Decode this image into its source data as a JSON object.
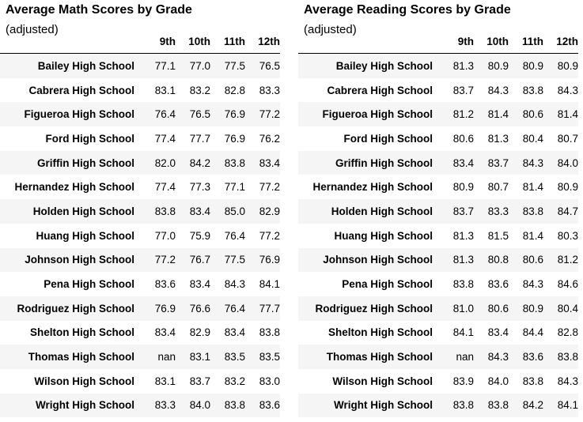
{
  "columns": [
    "9th",
    "10th",
    "11th",
    "12th"
  ],
  "math": {
    "title": "Average Math Scores by Grade",
    "subtitle": "(adjusted)",
    "rows": [
      {
        "school": "Bailey High School",
        "values": [
          "77.1",
          "77.0",
          "77.5",
          "76.5"
        ]
      },
      {
        "school": "Cabrera High School",
        "values": [
          "83.1",
          "83.2",
          "82.8",
          "83.3"
        ]
      },
      {
        "school": "Figueroa High School",
        "values": [
          "76.4",
          "76.5",
          "76.9",
          "77.2"
        ]
      },
      {
        "school": "Ford High School",
        "values": [
          "77.4",
          "77.7",
          "76.9",
          "76.2"
        ]
      },
      {
        "school": "Griffin High School",
        "values": [
          "82.0",
          "84.2",
          "83.8",
          "83.4"
        ]
      },
      {
        "school": "Hernandez High School",
        "values": [
          "77.4",
          "77.3",
          "77.1",
          "77.2"
        ]
      },
      {
        "school": "Holden High School",
        "values": [
          "83.8",
          "83.4",
          "85.0",
          "82.9"
        ]
      },
      {
        "school": "Huang High School",
        "values": [
          "77.0",
          "75.9",
          "76.4",
          "77.2"
        ]
      },
      {
        "school": "Johnson High School",
        "values": [
          "77.2",
          "76.7",
          "77.5",
          "76.9"
        ]
      },
      {
        "school": "Pena High School",
        "values": [
          "83.6",
          "83.4",
          "84.3",
          "84.1"
        ]
      },
      {
        "school": "Rodriguez High School",
        "values": [
          "76.9",
          "76.6",
          "76.4",
          "77.7"
        ]
      },
      {
        "school": "Shelton High School",
        "values": [
          "83.4",
          "82.9",
          "83.4",
          "83.8"
        ]
      },
      {
        "school": "Thomas High School",
        "values": [
          "nan",
          "83.1",
          "83.5",
          "83.5"
        ]
      },
      {
        "school": "Wilson High School",
        "values": [
          "83.1",
          "83.7",
          "83.2",
          "83.0"
        ]
      },
      {
        "school": "Wright High School",
        "values": [
          "83.3",
          "84.0",
          "83.8",
          "83.6"
        ]
      }
    ]
  },
  "reading": {
    "title": "Average Reading Scores by Grade",
    "subtitle": "(adjusted)",
    "rows": [
      {
        "school": "Bailey High School",
        "values": [
          "81.3",
          "80.9",
          "80.9",
          "80.9"
        ]
      },
      {
        "school": "Cabrera High School",
        "values": [
          "83.7",
          "84.3",
          "83.8",
          "84.3"
        ]
      },
      {
        "school": "Figueroa High School",
        "values": [
          "81.2",
          "81.4",
          "80.6",
          "81.4"
        ]
      },
      {
        "school": "Ford High School",
        "values": [
          "80.6",
          "81.3",
          "80.4",
          "80.7"
        ]
      },
      {
        "school": "Griffin High School",
        "values": [
          "83.4",
          "83.7",
          "84.3",
          "84.0"
        ]
      },
      {
        "school": "Hernandez High School",
        "values": [
          "80.9",
          "80.7",
          "81.4",
          "80.9"
        ]
      },
      {
        "school": "Holden High School",
        "values": [
          "83.7",
          "83.3",
          "83.8",
          "84.7"
        ]
      },
      {
        "school": "Huang High School",
        "values": [
          "81.3",
          "81.5",
          "81.4",
          "80.3"
        ]
      },
      {
        "school": "Johnson High School",
        "values": [
          "81.3",
          "80.8",
          "80.6",
          "81.2"
        ]
      },
      {
        "school": "Pena High School",
        "values": [
          "83.8",
          "83.6",
          "84.3",
          "84.6"
        ]
      },
      {
        "school": "Rodriguez High School",
        "values": [
          "81.0",
          "80.6",
          "80.9",
          "80.4"
        ]
      },
      {
        "school": "Shelton High School",
        "values": [
          "84.1",
          "83.4",
          "84.4",
          "82.8"
        ]
      },
      {
        "school": "Thomas High School",
        "values": [
          "nan",
          "84.3",
          "83.6",
          "83.8"
        ]
      },
      {
        "school": "Wilson High School",
        "values": [
          "83.9",
          "84.0",
          "83.8",
          "84.3"
        ]
      },
      {
        "school": "Wright High School",
        "values": [
          "83.8",
          "83.8",
          "84.2",
          "84.1"
        ]
      }
    ]
  }
}
